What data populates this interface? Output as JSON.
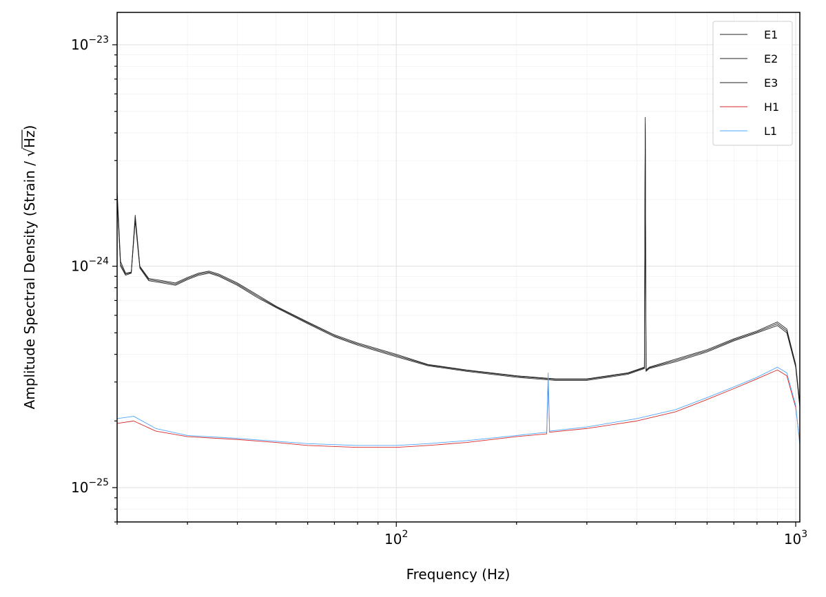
{
  "chart_data": {
    "type": "line",
    "title": "",
    "xlabel": "Frequency (Hz)",
    "ylabel_prefix": "Amplitude Spectral Density (Strain / ",
    "ylabel_sqrt_symbol": "√",
    "ylabel_sqrt_arg": "Hz",
    "ylabel_suffix": ")",
    "x_scale": "log",
    "y_scale": "log",
    "xlim": [
      20,
      1024
    ],
    "ylim": [
      7e-26,
      1.4e-23
    ],
    "grid": true,
    "legend_position": "top-right",
    "x_major_ticks": [
      {
        "value": 100,
        "base": "10",
        "exp": "2"
      },
      {
        "value": 1000,
        "base": "10",
        "exp": "3"
      }
    ],
    "y_major_ticks": [
      {
        "value": 1e-25,
        "base": "10",
        "exp": "−25"
      },
      {
        "value": 1e-24,
        "base": "10",
        "exp": "−24"
      },
      {
        "value": 1e-23,
        "base": "10",
        "exp": "−23"
      }
    ],
    "series": [
      {
        "name": "E1",
        "color": "#222222",
        "points": [
          [
            20,
            2.2e-24
          ],
          [
            20.4,
            1.05e-24
          ],
          [
            21,
            9.3e-25
          ],
          [
            21.7,
            9.4e-25
          ],
          [
            22.2,
            1.7e-24
          ],
          [
            22.8,
            1e-24
          ],
          [
            24,
            8.8e-25
          ],
          [
            26,
            8.6e-25
          ],
          [
            28,
            8.4e-25
          ],
          [
            30,
            8.9e-25
          ],
          [
            32,
            9.3e-25
          ],
          [
            34,
            9.5e-25
          ],
          [
            36,
            9.2e-25
          ],
          [
            40,
            8.4e-25
          ],
          [
            45,
            7.4e-25
          ],
          [
            50,
            6.6e-25
          ],
          [
            60,
            5.6e-25
          ],
          [
            70,
            4.9e-25
          ],
          [
            80,
            4.5e-25
          ],
          [
            100,
            4e-25
          ],
          [
            120,
            3.6e-25
          ],
          [
            150,
            3.4e-25
          ],
          [
            200,
            3.2e-25
          ],
          [
            250,
            3.1e-25
          ],
          [
            300,
            3.1e-25
          ],
          [
            380,
            3.3e-25
          ],
          [
            418,
            3.5e-25
          ],
          [
            420,
            4.7e-24
          ],
          [
            422,
            3.4e-25
          ],
          [
            430,
            3.5e-25
          ],
          [
            500,
            3.8e-25
          ],
          [
            600,
            4.2e-25
          ],
          [
            700,
            4.7e-25
          ],
          [
            800,
            5.1e-25
          ],
          [
            900,
            5.6e-25
          ],
          [
            950,
            5.2e-25
          ],
          [
            1000,
            3.6e-25
          ],
          [
            1024,
            2.4e-25
          ]
        ]
      },
      {
        "name": "E2",
        "color": "#222222",
        "points": [
          [
            20,
            2.1e-24
          ],
          [
            20.4,
            1e-24
          ],
          [
            21,
            9.1e-25
          ],
          [
            21.7,
            9.3e-25
          ],
          [
            22.2,
            1.6e-24
          ],
          [
            22.8,
            9.8e-25
          ],
          [
            24,
            8.6e-25
          ],
          [
            26,
            8.4e-25
          ],
          [
            28,
            8.2e-25
          ],
          [
            30,
            8.7e-25
          ],
          [
            32,
            9.1e-25
          ],
          [
            34,
            9.3e-25
          ],
          [
            36,
            9e-25
          ],
          [
            40,
            8.2e-25
          ],
          [
            45,
            7.2e-25
          ],
          [
            50,
            6.5e-25
          ],
          [
            60,
            5.5e-25
          ],
          [
            70,
            4.8e-25
          ],
          [
            80,
            4.4e-25
          ],
          [
            100,
            3.9e-25
          ],
          [
            120,
            3.55e-25
          ],
          [
            150,
            3.35e-25
          ],
          [
            200,
            3.15e-25
          ],
          [
            250,
            3.05e-25
          ],
          [
            300,
            3.05e-25
          ],
          [
            380,
            3.25e-25
          ],
          [
            418,
            3.45e-25
          ],
          [
            420,
            4.2e-24
          ],
          [
            422,
            3.35e-25
          ],
          [
            430,
            3.45e-25
          ],
          [
            500,
            3.7e-25
          ],
          [
            600,
            4.1e-25
          ],
          [
            700,
            4.6e-25
          ],
          [
            800,
            5e-25
          ],
          [
            900,
            5.4e-25
          ],
          [
            950,
            5e-25
          ],
          [
            1000,
            3.5e-25
          ],
          [
            1024,
            2.3e-25
          ]
        ]
      },
      {
        "name": "E3",
        "color": "#222222",
        "points": [
          [
            20,
            2e-24
          ],
          [
            20.4,
            1.02e-24
          ],
          [
            21,
            9.2e-25
          ],
          [
            21.7,
            9.35e-25
          ],
          [
            22.2,
            1.65e-24
          ],
          [
            22.8,
            9.9e-25
          ],
          [
            24,
            8.7e-25
          ],
          [
            26,
            8.5e-25
          ],
          [
            28,
            8.3e-25
          ],
          [
            30,
            8.8e-25
          ],
          [
            32,
            9.2e-25
          ],
          [
            34,
            9.4e-25
          ],
          [
            36,
            9.1e-25
          ],
          [
            40,
            8.3e-25
          ],
          [
            45,
            7.3e-25
          ],
          [
            50,
            6.55e-25
          ],
          [
            60,
            5.55e-25
          ],
          [
            70,
            4.85e-25
          ],
          [
            80,
            4.45e-25
          ],
          [
            100,
            3.95e-25
          ],
          [
            120,
            3.58e-25
          ],
          [
            150,
            3.38e-25
          ],
          [
            200,
            3.18e-25
          ],
          [
            250,
            3.08e-25
          ],
          [
            300,
            3.08e-25
          ],
          [
            380,
            3.28e-25
          ],
          [
            418,
            3.48e-25
          ],
          [
            420,
            4.4e-24
          ],
          [
            422,
            3.38e-25
          ],
          [
            430,
            3.48e-25
          ],
          [
            500,
            3.75e-25
          ],
          [
            600,
            4.15e-25
          ],
          [
            700,
            4.65e-25
          ],
          [
            800,
            5.05e-25
          ],
          [
            900,
            5.5e-25
          ],
          [
            950,
            5.1e-25
          ],
          [
            1000,
            3.55e-25
          ],
          [
            1024,
            2.35e-25
          ]
        ]
      },
      {
        "name": "H1",
        "color": "#d62728",
        "points": [
          [
            20,
            1.95e-25
          ],
          [
            22,
            2e-25
          ],
          [
            25,
            1.8e-25
          ],
          [
            30,
            1.7e-25
          ],
          [
            40,
            1.65e-25
          ],
          [
            50,
            1.6e-25
          ],
          [
            60,
            1.55e-25
          ],
          [
            80,
            1.52e-25
          ],
          [
            100,
            1.52e-25
          ],
          [
            120,
            1.55e-25
          ],
          [
            150,
            1.6e-25
          ],
          [
            200,
            1.7e-25
          ],
          [
            238,
            1.75e-25
          ],
          [
            240,
            3e-25
          ],
          [
            242,
            1.78e-25
          ],
          [
            300,
            1.85e-25
          ],
          [
            400,
            2e-25
          ],
          [
            500,
            2.2e-25
          ],
          [
            600,
            2.5e-25
          ],
          [
            700,
            2.8e-25
          ],
          [
            800,
            3.1e-25
          ],
          [
            900,
            3.4e-25
          ],
          [
            950,
            3.2e-25
          ],
          [
            1000,
            2.3e-25
          ],
          [
            1024,
            1.6e-25
          ]
        ]
      },
      {
        "name": "L1",
        "color": "#4da6ff",
        "points": [
          [
            20,
            2.05e-25
          ],
          [
            22,
            2.1e-25
          ],
          [
            25,
            1.85e-25
          ],
          [
            30,
            1.72e-25
          ],
          [
            40,
            1.67e-25
          ],
          [
            50,
            1.62e-25
          ],
          [
            60,
            1.58e-25
          ],
          [
            80,
            1.55e-25
          ],
          [
            100,
            1.55e-25
          ],
          [
            120,
            1.58e-25
          ],
          [
            150,
            1.63e-25
          ],
          [
            200,
            1.72e-25
          ],
          [
            238,
            1.78e-25
          ],
          [
            240,
            3.3e-25
          ],
          [
            242,
            1.8e-25
          ],
          [
            300,
            1.88e-25
          ],
          [
            400,
            2.05e-25
          ],
          [
            500,
            2.25e-25
          ],
          [
            600,
            2.55e-25
          ],
          [
            700,
            2.85e-25
          ],
          [
            800,
            3.15e-25
          ],
          [
            900,
            3.5e-25
          ],
          [
            950,
            3.3e-25
          ],
          [
            1000,
            2.35e-25
          ],
          [
            1024,
            1.55e-25
          ]
        ]
      }
    ]
  }
}
